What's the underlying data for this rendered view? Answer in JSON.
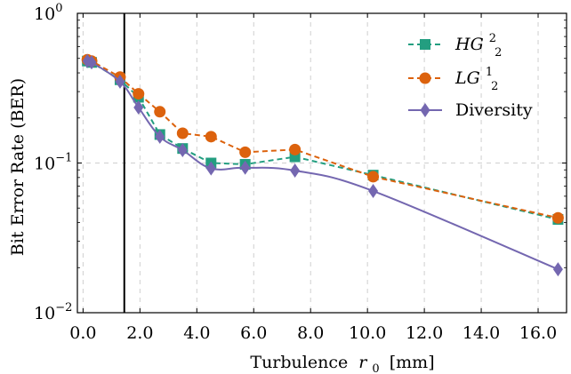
{
  "chart_data": {
    "type": "line",
    "title": "",
    "xlabel": "Turbulence",
    "xlabel_symbol": "r",
    "xlabel_subscript": "0",
    "xlabel_unit": "[mm]",
    "ylabel": "Bit Error Rate (BER)",
    "xlim": [
      -0.2,
      17.0
    ],
    "ylim": [
      0.01,
      1
    ],
    "yscale": "log",
    "grid": true,
    "legend_position": "top-right",
    "x_ticks": [
      "0.0",
      "2.0",
      "4.0",
      "6.0",
      "8.0",
      "10.0",
      "12.0",
      "14.0",
      "16.0"
    ],
    "y_ticks": [
      {
        "base": "10",
        "exp": "0"
      },
      {
        "base": "10",
        "exp": "−1"
      },
      {
        "base": "10",
        "exp": "−2"
      }
    ],
    "vertical_line_x": 1.45,
    "series": [
      {
        "name_base": "HG",
        "name_sup": "2",
        "name_sub": "2",
        "color": "#239e80",
        "marker": "square",
        "style": "dashed",
        "x": [
          0.15,
          0.3,
          1.3,
          1.95,
          2.7,
          3.5,
          4.5,
          5.7,
          7.45,
          10.2,
          16.7
        ],
        "y": [
          0.48,
          0.47,
          0.36,
          0.275,
          0.155,
          0.125,
          0.1,
          0.098,
          0.11,
          0.083,
          0.042
        ]
      },
      {
        "name_base": "LG",
        "name_sup": "1",
        "name_sub": "2",
        "color": "#dc620d",
        "marker": "circle",
        "style": "dashed",
        "x": [
          0.15,
          0.3,
          1.3,
          1.95,
          2.7,
          3.5,
          4.5,
          5.7,
          7.45,
          10.2,
          16.7
        ],
        "y": [
          0.49,
          0.48,
          0.375,
          0.29,
          0.22,
          0.158,
          0.15,
          0.118,
          0.123,
          0.081,
          0.043
        ]
      },
      {
        "name": "Diversity",
        "color": "#7467b0",
        "marker": "diamond",
        "style": "solid",
        "x": [
          0.15,
          0.3,
          1.3,
          1.95,
          2.7,
          3.5,
          4.5,
          5.7,
          7.45,
          10.2,
          16.7
        ],
        "y": [
          0.48,
          0.47,
          0.35,
          0.235,
          0.15,
          0.122,
          0.092,
          0.093,
          0.089,
          0.065,
          0.0195
        ]
      }
    ]
  }
}
